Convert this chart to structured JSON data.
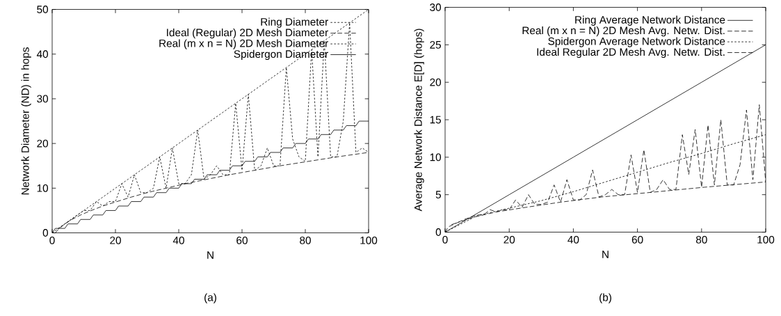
{
  "chart_data": [
    {
      "type": "line",
      "xlabel": "N",
      "ylabel": "Network Diameter (ND) in hops",
      "xlim": [
        0,
        100
      ],
      "ylim": [
        0,
        50
      ],
      "xticks": [
        0,
        20,
        40,
        60,
        80,
        100
      ],
      "yticks": [
        0,
        10,
        20,
        30,
        40,
        50
      ],
      "legend": "top right",
      "marker": "none",
      "annotations": [
        "(a)"
      ],
      "series": [
        {
          "name": "Ring Diameter",
          "color": "#000000",
          "line_style": "dotted",
          "x": [
            0,
            2,
            4,
            6,
            8,
            10,
            12,
            14,
            16,
            18,
            20,
            22,
            24,
            26,
            28,
            30,
            32,
            34,
            36,
            38,
            40,
            42,
            44,
            46,
            48,
            50,
            52,
            54,
            56,
            58,
            60,
            62,
            64,
            66,
            68,
            70,
            72,
            74,
            76,
            78,
            80,
            82,
            84,
            86,
            88,
            90,
            92,
            94,
            96,
            98,
            100
          ],
          "values": [
            0,
            1,
            2,
            3,
            4,
            5,
            6,
            7,
            8,
            9,
            10,
            11,
            12,
            13,
            14,
            15,
            16,
            17,
            18,
            19,
            20,
            21,
            22,
            23,
            24,
            25,
            26,
            27,
            28,
            29,
            30,
            31,
            32,
            33,
            34,
            35,
            36,
            37,
            38,
            39,
            40,
            41,
            42,
            43,
            44,
            45,
            46,
            47,
            48,
            49,
            50
          ]
        },
        {
          "name": "Ideal (Regular) 2D Mesh Diameter",
          "color": "#000000",
          "line_style": "dashed",
          "x": [
            1,
            2,
            4,
            6,
            9,
            12,
            16,
            20,
            25,
            30,
            36,
            42,
            49,
            56,
            64,
            72,
            81,
            90,
            100
          ],
          "values": [
            0,
            0.8,
            2,
            2.9,
            4,
            4.9,
            6,
            6.9,
            8,
            9,
            10,
            11,
            12,
            13,
            14,
            15,
            16,
            17,
            18
          ]
        },
        {
          "name": "Real (m x n = N) 2D Mesh Diameter",
          "color": "#000000",
          "line_style": "dotted",
          "x": [
            2,
            4,
            6,
            8,
            10,
            12,
            14,
            16,
            18,
            20,
            22,
            24,
            26,
            28,
            30,
            32,
            34,
            36,
            38,
            40,
            42,
            44,
            46,
            48,
            50,
            52,
            54,
            56,
            58,
            60,
            62,
            64,
            66,
            68,
            70,
            72,
            74,
            76,
            78,
            80,
            82,
            84,
            86,
            88,
            90,
            92,
            94,
            96,
            98,
            100
          ],
          "values": [
            1,
            2,
            3,
            4,
            5,
            5,
            7,
            6,
            7,
            7,
            11,
            8,
            13,
            9,
            9,
            10,
            17,
            10,
            19,
            11,
            11,
            13,
            23,
            12,
            13,
            15,
            13,
            13,
            29,
            14,
            31,
            14,
            15,
            19,
            15,
            15,
            37,
            21,
            17,
            16,
            41,
            17,
            43,
            17,
            17,
            25,
            47,
            18,
            19,
            18
          ]
        },
        {
          "name": "Spidergon Diameter",
          "color": "#000000",
          "line_style": "solid",
          "x": [
            0,
            1,
            4,
            5,
            8,
            9,
            12,
            13,
            16,
            17,
            20,
            21,
            24,
            25,
            28,
            29,
            32,
            33,
            36,
            37,
            40,
            41,
            44,
            45,
            48,
            49,
            52,
            53,
            56,
            57,
            60,
            61,
            64,
            65,
            68,
            69,
            72,
            73,
            76,
            77,
            80,
            81,
            84,
            85,
            88,
            89,
            92,
            93,
            96,
            97,
            100
          ],
          "values": [
            0,
            1,
            1,
            2,
            2,
            3,
            3,
            4,
            4,
            5,
            5,
            6,
            6,
            7,
            7,
            8,
            8,
            9,
            9,
            10,
            10,
            11,
            11,
            12,
            12,
            13,
            13,
            14,
            14,
            15,
            15,
            16,
            16,
            17,
            17,
            18,
            18,
            19,
            19,
            20,
            20,
            21,
            21,
            22,
            22,
            23,
            23,
            24,
            24,
            25,
            25
          ]
        }
      ]
    },
    {
      "type": "line",
      "xlabel": "N",
      "ylabel": "Average Network Distance E[D] (hops)",
      "xlim": [
        0,
        100
      ],
      "ylim": [
        0,
        30
      ],
      "xticks": [
        0,
        20,
        40,
        60,
        80,
        100
      ],
      "yticks": [
        0,
        5,
        10,
        15,
        20,
        25,
        30
      ],
      "legend": "top right",
      "marker": "none",
      "annotations": [
        "(b)"
      ],
      "series": [
        {
          "name": "Ring Average Network Distance",
          "color": "#000000",
          "line_style": "solid",
          "x": [
            0,
            20,
            40,
            60,
            80,
            100
          ],
          "values": [
            0,
            5,
            10,
            15,
            20,
            25
          ]
        },
        {
          "name": "Real (m x n = N) 2D Mesh Avg. Netw. Dist.",
          "color": "#000000",
          "line_style": "dashed",
          "x": [
            2,
            4,
            6,
            8,
            10,
            12,
            14,
            16,
            18,
            20,
            22,
            24,
            26,
            28,
            30,
            32,
            34,
            36,
            38,
            40,
            42,
            44,
            46,
            48,
            50,
            52,
            54,
            56,
            58,
            60,
            62,
            64,
            66,
            68,
            70,
            72,
            74,
            76,
            78,
            80,
            82,
            84,
            86,
            88,
            90,
            92,
            94,
            96,
            98,
            100
          ],
          "values": [
            1,
            1.3,
            1.7,
            2,
            2.3,
            2.3,
            3,
            2.7,
            3,
            3,
            4.3,
            3.3,
            5,
            3.7,
            3.7,
            4,
            6.3,
            4,
            7,
            4.3,
            4.3,
            5,
            8.3,
            4.7,
            5,
            5.7,
            5,
            5,
            10.3,
            5.3,
            11,
            5.3,
            5.7,
            7,
            5.7,
            5.7,
            13,
            7.7,
            13.7,
            6,
            14.3,
            6.3,
            15,
            6.3,
            6.3,
            9,
            16.3,
            7,
            17,
            6.7
          ]
        },
        {
          "name": "Spidergon Average Network Distance",
          "color": "#000000",
          "line_style": "dotted",
          "x": [
            0,
            10,
            20,
            30,
            40,
            50,
            60,
            70,
            80,
            90,
            100
          ],
          "values": [
            0,
            2.2,
            3.2,
            4.2,
            5.4,
            6.7,
            8,
            9.3,
            10.5,
            11.8,
            13
          ]
        },
        {
          "name": "Ideal Regular 2D Mesh Avg. Netw. Dist.",
          "color": "#000000",
          "line_style": "dashed",
          "x": [
            0,
            1,
            4,
            9,
            16,
            25,
            36,
            49,
            64,
            81,
            100
          ],
          "values": [
            0,
            0.7,
            1.3,
            2,
            2.7,
            3.3,
            4,
            4.7,
            5.3,
            6,
            6.7
          ]
        }
      ]
    }
  ]
}
